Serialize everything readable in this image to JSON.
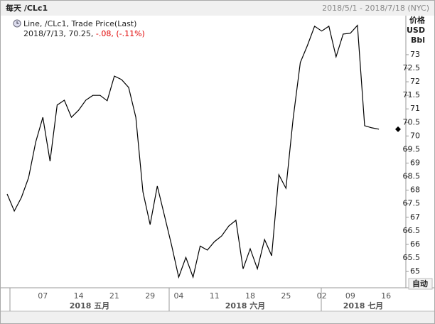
{
  "chart_data": {
    "type": "line",
    "title": "每天 /CLc1",
    "date_range": "2018/5/1 - 2018/7/18 (NYC)",
    "y_axis_label": [
      "价格",
      "USD",
      "Bbl"
    ],
    "legend": {
      "title": "Line, /CLc1, Trade Price(Last)",
      "last": "2018/7/13, 70.25,",
      "change": "-.08, (-.11%)"
    },
    "auto_button": "自动",
    "categories": [
      null,
      null,
      null,
      null,
      null,
      "07",
      null,
      null,
      null,
      null,
      "14",
      null,
      null,
      null,
      null,
      "21",
      null,
      null,
      null,
      null,
      "29",
      null,
      null,
      null,
      "04",
      null,
      null,
      null,
      null,
      "11",
      null,
      null,
      null,
      null,
      "18",
      null,
      null,
      null,
      null,
      "25",
      null,
      null,
      null,
      null,
      "02",
      null,
      null,
      null,
      "09",
      null,
      null,
      null,
      null,
      "16"
    ],
    "x_groups": [
      "2018 五月",
      "2018 六月",
      "2018 七月"
    ],
    "series": [
      {
        "name": "/CLc1",
        "color": "#000000",
        "values": [
          67.86,
          67.23,
          67.73,
          68.46,
          69.77,
          70.69,
          69.07,
          71.14,
          71.32,
          70.69,
          70.95,
          71.32,
          71.5,
          71.5,
          71.3,
          72.21,
          72.08,
          71.79,
          70.69,
          67.94,
          66.73,
          68.15,
          67.07,
          65.97,
          64.79,
          65.52,
          64.79,
          65.94,
          65.79,
          66.1,
          66.31,
          66.68,
          66.89,
          65.1,
          65.84,
          65.1,
          66.18,
          65.58,
          68.57,
          68.07,
          70.64,
          72.71,
          73.34,
          74.05,
          73.87,
          74.05,
          72.92,
          73.76,
          73.79,
          74.08,
          70.38,
          70.3,
          70.25,
          null
        ]
      }
    ],
    "ylim": [
      64.4,
      74.44
    ],
    "yticks": [
      65,
      65.5,
      66,
      66.5,
      67,
      67.5,
      68,
      68.5,
      69,
      69.5,
      70,
      70.5,
      71,
      71.5,
      72,
      72.5,
      73
    ],
    "grid": false
  }
}
